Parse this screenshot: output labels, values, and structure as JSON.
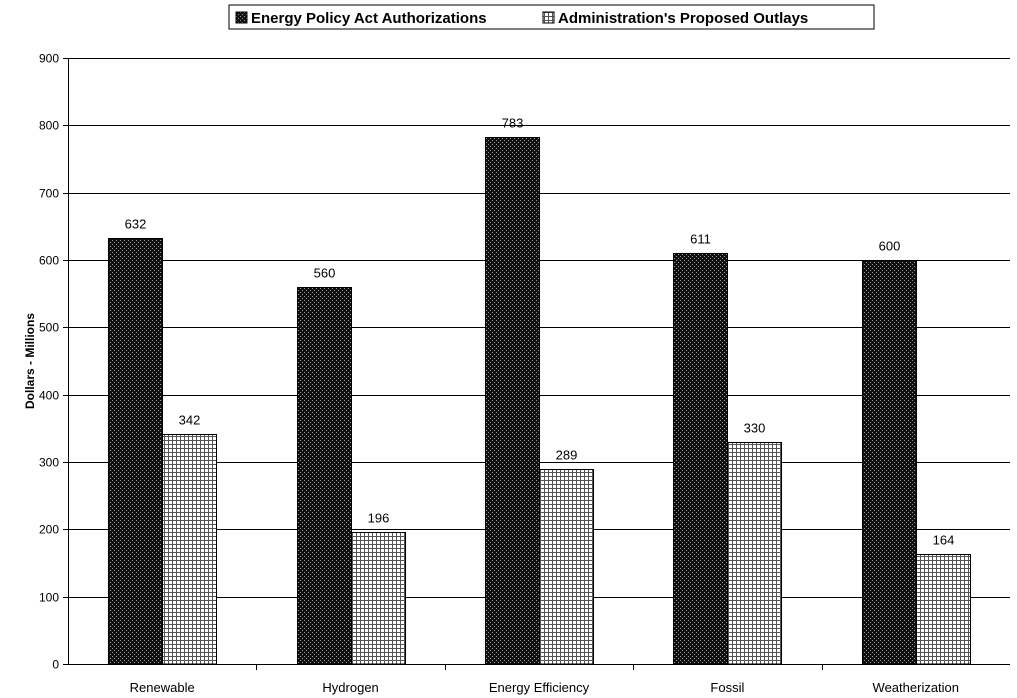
{
  "chart_data": {
    "type": "bar",
    "title": "",
    "xlabel": "",
    "ylabel": "Dollars - Millions",
    "ylim": [
      0,
      900
    ],
    "yticks": [
      0,
      100,
      200,
      300,
      400,
      500,
      600,
      700,
      800,
      900
    ],
    "grid": true,
    "legend_position": "top-center",
    "categories": [
      "Renewable",
      "Hydrogen",
      "Energy Efficiency",
      "Fossil",
      "Weatherization"
    ],
    "series": [
      {
        "name": "Energy Policy Act Authorizations",
        "values": [
          632,
          560,
          783,
          611,
          600
        ],
        "pattern": "dark-dotted",
        "color": "#1a1a1a"
      },
      {
        "name": "Administration's Proposed Outlays",
        "values": [
          342,
          196,
          289,
          330,
          164
        ],
        "pattern": "light-grid",
        "color": "#ffffff"
      }
    ]
  }
}
